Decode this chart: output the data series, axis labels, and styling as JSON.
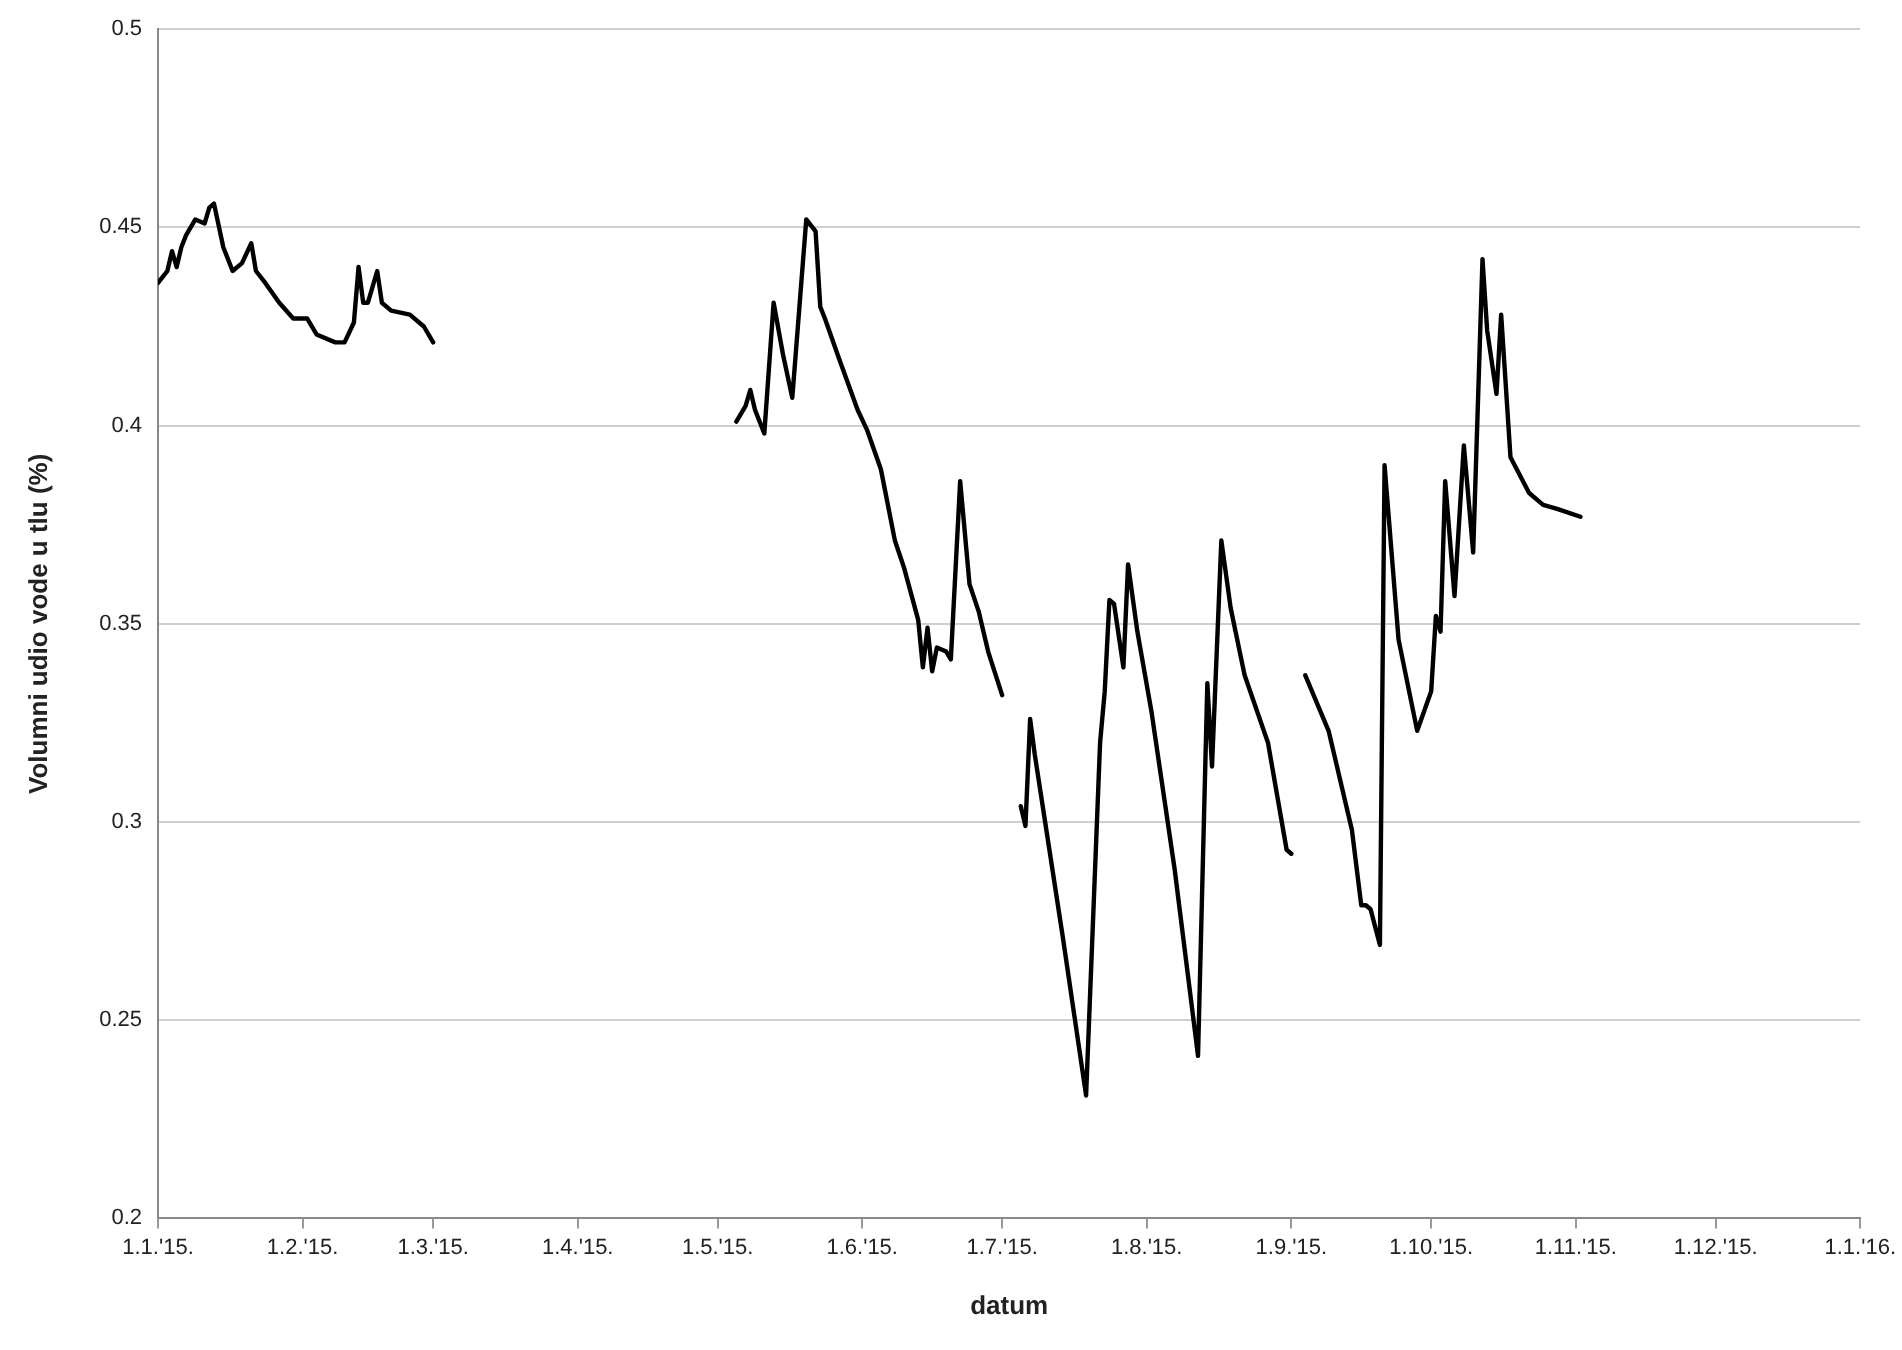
{
  "chart_data": {
    "type": "line",
    "xlabel": "datum",
    "ylabel": "Volumni udio vode u tlu (%)",
    "ylim": [
      0.2,
      0.5
    ],
    "yticks": [
      0.2,
      0.25,
      0.3,
      0.35,
      0.4,
      0.45,
      0.5
    ],
    "xlim": [
      "2015-01-01",
      "2016-01-01"
    ],
    "xticks": [
      {
        "value": "2015-01-01",
        "label": "1.1.'15."
      },
      {
        "value": "2015-02-01",
        "label": "1.2.'15."
      },
      {
        "value": "2015-03-01",
        "label": "1.3.'15."
      },
      {
        "value": "2015-04-01",
        "label": "1.4.'15."
      },
      {
        "value": "2015-05-01",
        "label": "1.5.'15."
      },
      {
        "value": "2015-06-01",
        "label": "1.6.'15."
      },
      {
        "value": "2015-07-01",
        "label": "1.7.'15."
      },
      {
        "value": "2015-08-01",
        "label": "1.8.'15."
      },
      {
        "value": "2015-09-01",
        "label": "1.9.'15."
      },
      {
        "value": "2015-10-01",
        "label": "1.10.'15."
      },
      {
        "value": "2015-11-01",
        "label": "1.11.'15."
      },
      {
        "value": "2015-12-01",
        "label": "1.12.'15."
      },
      {
        "value": "2016-01-01",
        "label": "1.1.'16."
      }
    ],
    "grid": "y",
    "legend": false,
    "marker": "none",
    "line_style": "solid",
    "series": [
      {
        "color": "#000000",
        "x": [
          "2015-01-01",
          "2015-01-03",
          "2015-01-04",
          "2015-01-05",
          "2015-01-06",
          "2015-01-07",
          "2015-01-09",
          "2015-01-11",
          "2015-01-12",
          "2015-01-13",
          "2015-01-15",
          "2015-01-17",
          "2015-01-19",
          "2015-01-21",
          "2015-01-22",
          "2015-01-24",
          "2015-01-27",
          "2015-01-30",
          "2015-02-02",
          "2015-02-04",
          "2015-02-08",
          "2015-02-10",
          "2015-02-12",
          "2015-02-13",
          "2015-02-14",
          "2015-02-15",
          "2015-02-17",
          "2015-02-18",
          "2015-02-20",
          "2015-02-24",
          "2015-02-27",
          "2015-03-01"
        ],
        "values": [
          0.436,
          0.439,
          0.444,
          0.44,
          0.445,
          0.448,
          0.452,
          0.451,
          0.455,
          0.456,
          0.445,
          0.439,
          0.441,
          0.446,
          0.439,
          0.436,
          0.431,
          0.427,
          0.427,
          0.423,
          0.421,
          0.421,
          0.426,
          0.44,
          0.431,
          0.431,
          0.439,
          0.431,
          0.429,
          0.428,
          0.425,
          0.421
        ]
      },
      {
        "color": "#000000",
        "x": [
          "2015-05-05",
          "2015-05-07",
          "2015-05-08",
          "2015-05-09",
          "2015-05-11",
          "2015-05-13",
          "2015-05-15",
          "2015-05-17",
          "2015-05-20",
          "2015-05-22",
          "2015-05-23",
          "2015-05-24",
          "2015-05-27",
          "2015-05-31",
          "2015-06-02",
          "2015-06-05",
          "2015-06-08",
          "2015-06-10",
          "2015-06-13",
          "2015-06-14",
          "2015-06-15",
          "2015-06-16",
          "2015-06-17",
          "2015-06-19",
          "2015-06-20",
          "2015-06-22",
          "2015-06-24",
          "2015-06-26",
          "2015-06-28",
          "2015-07-01"
        ],
        "values": [
          0.401,
          0.405,
          0.409,
          0.404,
          0.398,
          0.431,
          0.418,
          0.407,
          0.452,
          0.449,
          0.43,
          0.427,
          0.417,
          0.404,
          0.399,
          0.389,
          0.371,
          0.364,
          0.351,
          0.339,
          0.349,
          0.338,
          0.344,
          0.343,
          0.341,
          0.386,
          0.36,
          0.353,
          0.343,
          0.332
        ]
      },
      {
        "color": "#000000",
        "x": [
          "2015-07-05",
          "2015-07-06",
          "2015-07-07",
          "2015-07-08",
          "2015-07-14",
          "2015-07-19",
          "2015-07-22",
          "2015-07-23",
          "2015-07-24",
          "2015-07-25",
          "2015-07-27",
          "2015-07-28",
          "2015-07-30",
          "2015-08-02",
          "2015-08-07",
          "2015-08-12",
          "2015-08-14",
          "2015-08-15",
          "2015-08-17",
          "2015-08-19",
          "2015-08-22",
          "2015-08-27",
          "2015-08-31",
          "2015-09-01"
        ],
        "values": [
          0.304,
          0.299,
          0.326,
          0.317,
          0.271,
          0.231,
          0.32,
          0.333,
          0.356,
          0.355,
          0.339,
          0.365,
          0.348,
          0.328,
          0.288,
          0.241,
          0.335,
          0.314,
          0.371,
          0.354,
          0.337,
          0.32,
          0.293,
          0.292
        ]
      },
      {
        "color": "#000000",
        "x": [
          "2015-09-04",
          "2015-09-09",
          "2015-09-14",
          "2015-09-16",
          "2015-09-17",
          "2015-09-18",
          "2015-09-20",
          "2015-09-21",
          "2015-09-24",
          "2015-09-28",
          "2015-10-01",
          "2015-10-02",
          "2015-10-03",
          "2015-10-04",
          "2015-10-06",
          "2015-10-08",
          "2015-10-10",
          "2015-10-12",
          "2015-10-13",
          "2015-10-15",
          "2015-10-16",
          "2015-10-18",
          "2015-10-22",
          "2015-10-25",
          "2015-10-28",
          "2015-11-02"
        ],
        "values": [
          0.337,
          0.323,
          0.298,
          0.279,
          0.279,
          0.278,
          0.269,
          0.39,
          0.346,
          0.323,
          0.333,
          0.352,
          0.348,
          0.386,
          0.357,
          0.395,
          0.368,
          0.442,
          0.424,
          0.408,
          0.428,
          0.392,
          0.383,
          0.38,
          0.379,
          0.377
        ]
      }
    ]
  }
}
